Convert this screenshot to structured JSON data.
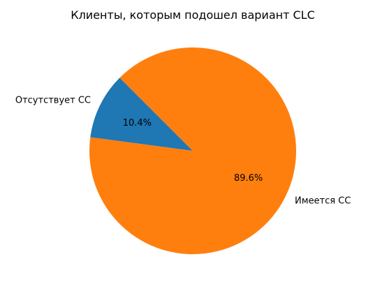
{
  "chart_data": {
    "type": "pie",
    "title": "Клиенты, которым подошел вариант CLC",
    "start_angle_deg": 135,
    "direction": "counterclockwise",
    "slices": [
      {
        "label": "Отсутствует CC",
        "value": 10.4,
        "pct_label": "10.4%",
        "color": "#1f77b4"
      },
      {
        "label": "Имеется CC",
        "value": 89.6,
        "pct_label": "89.6%",
        "color": "#ff7f0e"
      }
    ]
  }
}
